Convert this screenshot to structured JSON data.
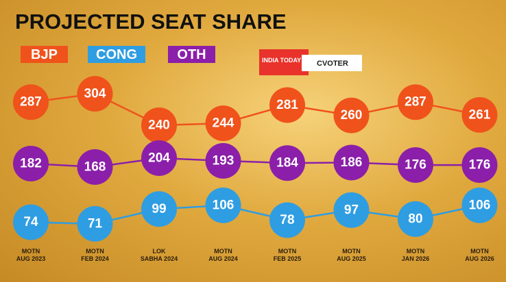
{
  "chart_data": {
    "type": "line",
    "title": "PROJECTED SEAT SHARE",
    "logo_texts": [
      "INDIA TODAY GROUP",
      "CVOTER"
    ],
    "categories": [
      "MOTN\nAUG 2023",
      "MOTN\nFEB 2024",
      "LOK\nSABHA 2024",
      "MOTN\nAUG 2024",
      "MOTN\nFEB 2025",
      "MOTN\nAUG 2025",
      "MOTN\nJAN 2026",
      "MOTN\nAUG 2026"
    ],
    "series": [
      {
        "name": "BJP",
        "color": "#f0521b",
        "values": [
          287,
          304,
          240,
          244,
          281,
          260,
          287,
          261
        ]
      },
      {
        "name": "CONG",
        "color": "#2f9de2",
        "values": [
          74,
          71,
          99,
          106,
          78,
          97,
          80,
          106
        ]
      },
      {
        "name": "OTH",
        "color": "#8b1fa9",
        "values": [
          182,
          168,
          204,
          193,
          184,
          186,
          176,
          176
        ]
      }
    ]
  }
}
